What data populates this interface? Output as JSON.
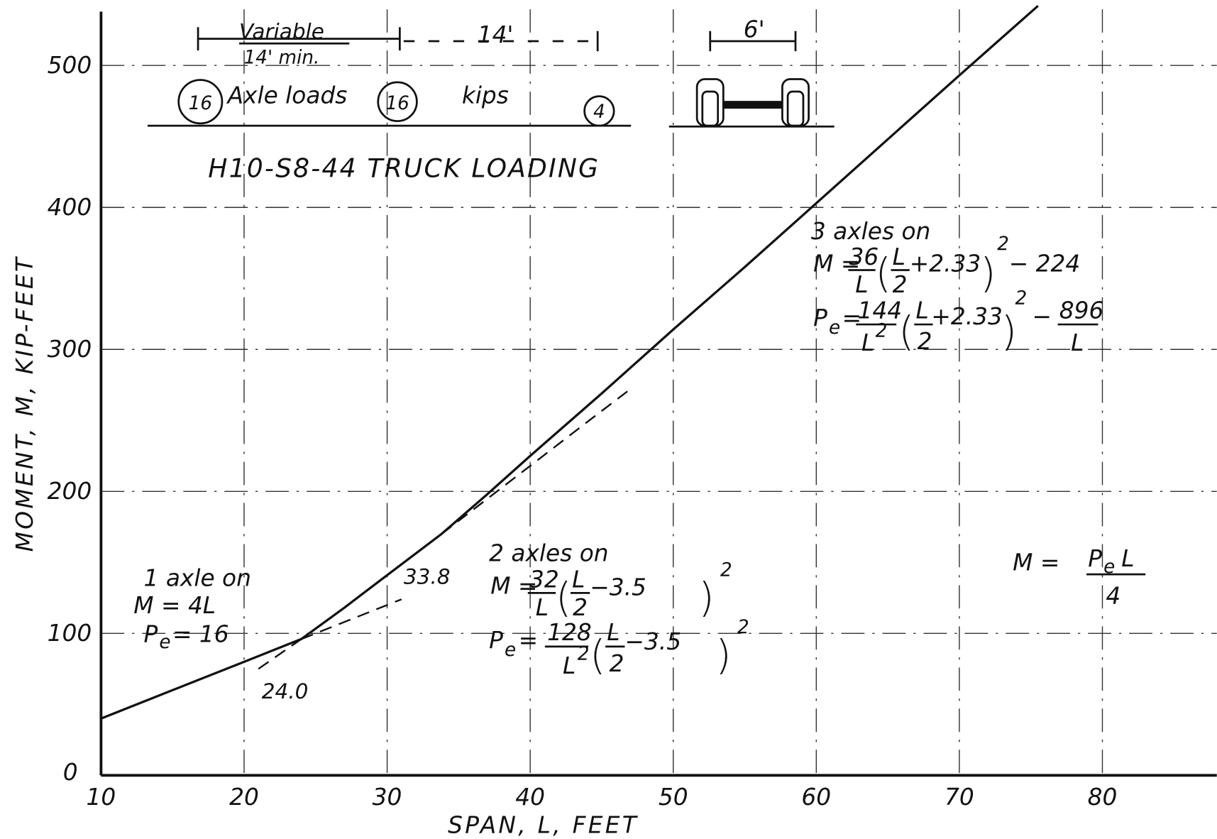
{
  "chart_data": {
    "type": "line",
    "x_label": "SPAN, L, FEET",
    "y_label": "MOMENT, M, KIP-FEET",
    "xlim": [
      10,
      88
    ],
    "ylim": [
      0,
      545
    ],
    "xticks": [
      10,
      20,
      30,
      40,
      50,
      60,
      70,
      80
    ],
    "yticks": [
      0,
      100,
      200,
      300,
      400,
      500
    ],
    "grid": true,
    "series": [
      {
        "color": "#111111",
        "dash": false,
        "x": [
          10,
          15,
          20,
          24,
          27,
          30,
          33.8,
          37,
          40,
          45,
          50,
          55,
          60,
          65,
          70,
          75.5
        ],
        "values": [
          40,
          60,
          80,
          96,
          118,
          141,
          170,
          198,
          225,
          269,
          314,
          358,
          403,
          448,
          493,
          542
        ]
      },
      {
        "color": "#111111",
        "dash": true,
        "x": [
          24,
          31
        ],
        "values": [
          96,
          124
        ]
      },
      {
        "color": "#111111",
        "dash": true,
        "x": [
          21,
          24
        ],
        "values": [
          75,
          96
        ]
      },
      {
        "color": "#111111",
        "dash": true,
        "x": [
          33.8,
          36,
          40,
          44,
          47
        ],
        "values": [
          170,
          187,
          218,
          249,
          272
        ]
      }
    ]
  },
  "annotations": {
    "truck": {
      "title": "H10-S8-44  TRUCK LOADING",
      "variable": "Variable",
      "min": "14' min.",
      "spacing": "14'",
      "track": "6'",
      "load1": "16",
      "axle_loads": "Axle loads",
      "load2": "16",
      "kips": "kips",
      "load3": "4"
    },
    "three": {
      "label": "3 axles on",
      "M": "M =",
      "n1": "36",
      "L": "L",
      "open": "(",
      "two": "2",
      "plus": "+2.33",
      "close": ")",
      "minus": "− 224",
      "P": "P",
      "e": "e",
      "eq": "=",
      "n2": "144",
      "minus2": "−",
      "n3": "896"
    },
    "two": {
      "label": "2 axles on",
      "M": "M =",
      "n1": "32",
      "L": "L",
      "open": "(",
      "two": "2",
      "minus": "−3.5",
      "close": ")",
      "P": "P",
      "e": "e",
      "eq": "=",
      "n2": "128"
    },
    "one": {
      "label": "1 axle on",
      "m": "M = 4L",
      "P": "P",
      "e": "e",
      "pe": "= 16"
    },
    "general": {
      "M": "M =",
      "P": "P",
      "e": "e",
      "L": "L",
      "four": "4"
    },
    "points": {
      "a": "24.0",
      "b": "33.8"
    }
  }
}
